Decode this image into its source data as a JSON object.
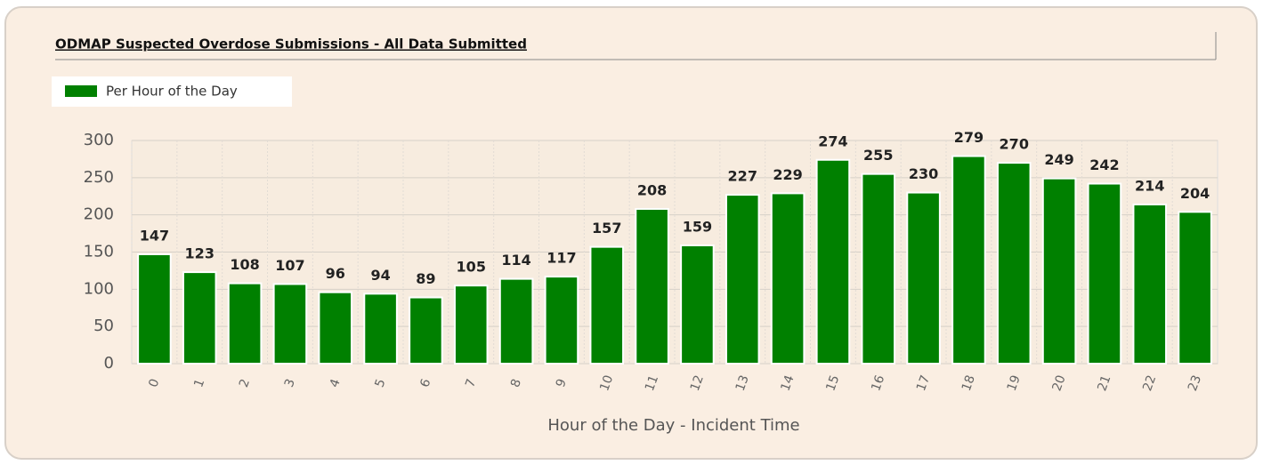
{
  "chart_data": {
    "type": "bar",
    "title": "ODMAP Suspected Overdose Submissions - All Data Submitted",
    "x_label": "Hour of the Day - Incident Time",
    "categories": [
      "0",
      "1",
      "2",
      "3",
      "4",
      "5",
      "6",
      "7",
      "8",
      "9",
      "10",
      "11",
      "12",
      "13",
      "14",
      "15",
      "16",
      "17",
      "18",
      "19",
      "20",
      "21",
      "22",
      "23"
    ],
    "series": [
      {
        "name": "Per Hour of the Day",
        "color": "#008000",
        "values": [
          147,
          123,
          108,
          107,
          96,
          94,
          89,
          105,
          114,
          117,
          157,
          208,
          159,
          227,
          229,
          274,
          255,
          230,
          279,
          270,
          249,
          242,
          214,
          204
        ]
      }
    ],
    "ylim": [
      0,
      300
    ],
    "yticks": [
      0,
      50,
      100,
      150,
      200,
      250,
      300
    ],
    "grid": true,
    "legend": "top-left"
  }
}
